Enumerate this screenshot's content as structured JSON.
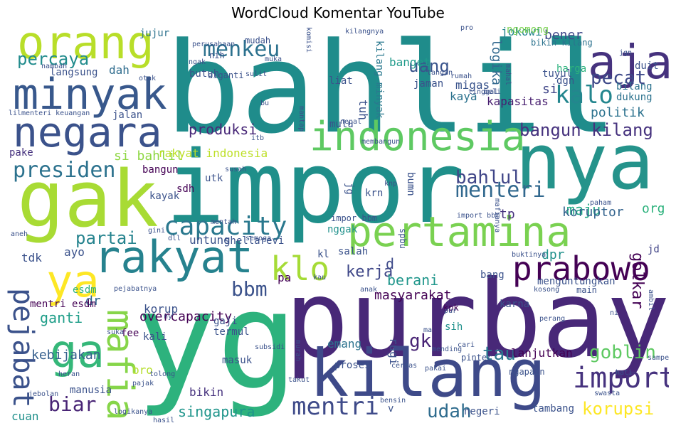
{
  "chart_data": {
    "type": "wordcloud",
    "title": "WordCloud Komentar YouTube",
    "words": [
      {
        "text": "bahlil",
        "color": "#1f8c8b"
      },
      {
        "text": "impor",
        "color": "#1f8f8a"
      },
      {
        "text": "yg",
        "color": "#2db27d"
      },
      {
        "text": "purbaya",
        "color": "#482878"
      },
      {
        "text": "gak",
        "color": "#a8db34"
      },
      {
        "text": "nya",
        "color": "#25938b"
      },
      {
        "text": "kilang",
        "color": "#3e4a89"
      },
      {
        "text": "orang",
        "color": "#b8de29"
      },
      {
        "text": "minyak",
        "color": "#38588c"
      },
      {
        "text": "negara",
        "color": "#3b528b"
      },
      {
        "text": "pertamina",
        "color": "#7ad151"
      },
      {
        "text": "rakyat",
        "color": "#26828e"
      },
      {
        "text": "indonesia",
        "color": "#5ec962"
      },
      {
        "text": "aja",
        "color": "#46327e"
      },
      {
        "text": "ya",
        "color": "#fde725"
      },
      {
        "text": "ga",
        "color": "#35b779"
      },
      {
        "text": "mafia",
        "color": "#86d549"
      },
      {
        "text": "prabowo",
        "color": "#440154"
      },
      {
        "text": "capacity",
        "color": "#2a788e"
      },
      {
        "text": "presiden",
        "color": "#2c728e"
      },
      {
        "text": "pejabat",
        "color": "#3b528b"
      },
      {
        "text": "klo",
        "color": "#a5db36"
      },
      {
        "text": "menkeu",
        "color": "#2c718e"
      },
      {
        "text": "import",
        "color": "#46327e"
      },
      {
        "text": "kalo",
        "color": "#24868e"
      },
      {
        "text": "mentri",
        "color": "#3e4a89"
      },
      {
        "text": "percaya",
        "color": "#228c8d"
      },
      {
        "text": "bbm",
        "color": "#3b528b"
      },
      {
        "text": "menteri",
        "color": "#31688e"
      },
      {
        "text": "pecat",
        "color": "#3e4989"
      },
      {
        "text": "uang",
        "color": "#3a548c"
      },
      {
        "text": "bahlul",
        "color": "#404688"
      },
      {
        "text": "bangun kilang",
        "color": "#46327e"
      },
      {
        "text": "partai",
        "color": "#25838e"
      },
      {
        "text": "biar",
        "color": "#482475"
      },
      {
        "text": "goblin",
        "color": "#5ec962"
      },
      {
        "text": "korupsi",
        "color": "#fde725"
      },
      {
        "text": "golkar",
        "color": "#440154"
      },
      {
        "text": "udah",
        "color": "#2f6c8e"
      },
      {
        "text": "tau",
        "color": "#2a788e"
      },
      {
        "text": "gk",
        "color": "#482475"
      },
      {
        "text": "kerja",
        "color": "#3f4788"
      },
      {
        "text": "berani",
        "color": "#1f968b"
      },
      {
        "text": "ganti",
        "color": "#1f9e89"
      },
      {
        "text": "masyarakat",
        "color": "#440154"
      },
      {
        "text": "singapura",
        "color": "#1f958b"
      },
      {
        "text": "kebijakan",
        "color": "#355f8d"
      },
      {
        "text": "produksi",
        "color": "#482878"
      },
      {
        "text": "maju",
        "color": "#22a884"
      },
      {
        "text": "logika",
        "color": "#31688e"
      },
      {
        "text": "koruptor",
        "color": "#33638d"
      },
      {
        "text": "politik",
        "color": "#2c728e"
      },
      {
        "text": "kapasitas",
        "color": "#481f70"
      },
      {
        "text": "jokowi",
        "color": "#24868e"
      },
      {
        "text": "bener",
        "color": "#3f4788"
      },
      {
        "text": "si bahlil",
        "color": "#8fd744"
      },
      {
        "text": "rakyat indonesia",
        "color": "#bddf26"
      },
      {
        "text": "overcapacity",
        "color": "#440154"
      },
      {
        "text": "esdm",
        "color": "#2db27d"
      },
      {
        "text": "korup",
        "color": "#3b528b"
      },
      {
        "text": "dah",
        "color": "#2f6c8e"
      },
      {
        "text": "dpr",
        "color": "#21918c"
      },
      {
        "text": "org",
        "color": "#2db27d"
      },
      {
        "text": "d",
        "color": "#3e4a89"
      },
      {
        "text": "si",
        "color": "#404688"
      },
      {
        "text": "tp",
        "color": "#46327e"
      },
      {
        "text": "jd",
        "color": "#414487"
      },
      {
        "text": "dr",
        "color": "#31688e"
      },
      {
        "text": "banget",
        "color": "#1f9a8a"
      },
      {
        "text": "tuh",
        "color": "#3b528b"
      },
      {
        "text": "kilang minyak",
        "color": "#2a788e"
      },
      {
        "text": "kaya",
        "color": "#2c728e"
      },
      {
        "text": "migas",
        "color": "#3a548c"
      },
      {
        "text": "harga",
        "color": "#2db27d"
      },
      {
        "text": "bilang",
        "color": "#2c728e"
      },
      {
        "text": "dukung",
        "color": "#2c728e"
      },
      {
        "text": "tuyul",
        "color": "#3b528b"
      },
      {
        "text": "dgn",
        "color": "#3b528b"
      },
      {
        "text": "duit",
        "color": "#3b528b"
      },
      {
        "text": "bikin kilang",
        "color": "#2c728e"
      },
      {
        "text": "bangun",
        "color": "#440154"
      },
      {
        "text": "jujur",
        "color": "#2c728e"
      },
      {
        "text": "butuh",
        "color": "#3b528b"
      },
      {
        "text": "langsung",
        "color": "#3b528b"
      },
      {
        "text": "jalan",
        "color": "#3b528b"
      },
      {
        "text": "pake",
        "color": "#46327e"
      },
      {
        "text": "kayak",
        "color": "#3b528b"
      },
      {
        "text": "sdh",
        "color": "#440154"
      },
      {
        "text": "utk",
        "color": "#3b528b"
      },
      {
        "text": "nggak",
        "color": "#21918c"
      },
      {
        "text": "untung",
        "color": "#3b528b"
      },
      {
        "text": "shellarevi",
        "color": "#3b528b"
      },
      {
        "text": "ayo",
        "color": "#3b528b"
      },
      {
        "text": "tdk",
        "color": "#3b528b"
      },
      {
        "text": "salah",
        "color": "#3b528b"
      },
      {
        "text": "bang",
        "color": "#3b528b"
      },
      {
        "text": "menguntungkan",
        "color": "#3b528b"
      },
      {
        "text": "main",
        "color": "#3b528b"
      },
      {
        "text": "kpk",
        "color": "#440154"
      },
      {
        "text": "karna",
        "color": "#3b528b"
      },
      {
        "text": "sih",
        "color": "#21918c"
      },
      {
        "text": "emang",
        "color": "#2c728e"
      },
      {
        "text": "rugi",
        "color": "#3b528b"
      },
      {
        "text": "lanjutkan",
        "color": "#440154"
      },
      {
        "text": "fee",
        "color": "#440154"
      },
      {
        "text": "gaji",
        "color": "#3b528b"
      },
      {
        "text": "termul",
        "color": "#3b528b"
      },
      {
        "text": "kali",
        "color": "#3b528b"
      },
      {
        "text": "bro",
        "color": "#b5de2b"
      },
      {
        "text": "masuk",
        "color": "#3b528b"
      },
      {
        "text": "bikin",
        "color": "#46327e"
      },
      {
        "text": "manusia",
        "color": "#3b528b"
      },
      {
        "text": "cuan",
        "color": "#21918c"
      },
      {
        "text": "negeri",
        "color": "#3b528b"
      },
      {
        "text": "mentri esdm",
        "color": "#440154"
      },
      {
        "text": "impor bbm",
        "color": "#3b528b"
      },
      {
        "text": "spbu",
        "color": "#3b528b"
      },
      {
        "text": "krn",
        "color": "#3b528b"
      },
      {
        "text": "jg",
        "color": "#3b528b"
      },
      {
        "text": "bumn",
        "color": "#3b528b"
      },
      {
        "text": "kl",
        "color": "#3b528b"
      },
      {
        "text": "pa",
        "color": "#440154"
      },
      {
        "text": "v",
        "color": "#3b528b"
      },
      {
        "text": "liat",
        "color": "#3b528b"
      },
      {
        "text": "jaman",
        "color": "#3b528b"
      },
      {
        "text": "mulu",
        "color": "#3b528b"
      },
      {
        "text": "pinter",
        "color": "#3b528b"
      },
      {
        "text": "ngapain",
        "color": "#3b528b"
      },
      {
        "text": "proses",
        "color": "#3b528b"
      },
      {
        "text": "tambang",
        "color": "#3b528b"
      },
      {
        "text": "ngomong",
        "color": "#7ad151"
      },
      {
        "text": "nih",
        "color": "#3b528b"
      },
      {
        "text": "mudah",
        "color": "#3b528b"
      },
      {
        "text": "komisi",
        "color": "#3b528b"
      },
      {
        "text": "kilangnya",
        "color": "#3b528b"
      },
      {
        "text": "pro",
        "color": "#3b528b"
      },
      {
        "text": "jgn",
        "color": "#3b528b"
      },
      {
        "text": "perusahaan",
        "color": "#3b528b"
      },
      {
        "text": "ngak",
        "color": "#3b528b"
      },
      {
        "text": "sulit",
        "color": "#3b528b"
      },
      {
        "text": "muka",
        "color": "#3b528b"
      },
      {
        "text": "otak",
        "color": "#3b528b"
      },
      {
        "text": "nambah",
        "color": "#3b528b"
      },
      {
        "text": "diganti",
        "color": "#3b528b"
      },
      {
        "text": "tangan",
        "color": "#3b528b"
      },
      {
        "text": "mahal",
        "color": "#3b528b"
      },
      {
        "text": "rumah",
        "color": "#3b528b"
      },
      {
        "text": "beli",
        "color": "#3b528b"
      },
      {
        "text": "tinggal",
        "color": "#3b528b"
      },
      {
        "text": "lil",
        "color": "#3b528b"
      },
      {
        "text": "menteri keuangan",
        "color": "#3b528b"
      },
      {
        "text": "bu",
        "color": "#3b528b"
      },
      {
        "text": "mantap",
        "color": "#3b528b"
      },
      {
        "text": "nepal",
        "color": "#3b528b"
      },
      {
        "text": "itb",
        "color": "#3b528b"
      },
      {
        "text": "membangun",
        "color": "#3b528b"
      },
      {
        "text": "susah",
        "color": "#3b528b"
      },
      {
        "text": "knp",
        "color": "#3b528b"
      },
      {
        "text": "paham",
        "color": "#3b528b"
      },
      {
        "text": "import bbm",
        "color": "#3b528b"
      },
      {
        "text": "mafianya",
        "color": "#3b528b"
      },
      {
        "text": "mentah",
        "color": "#3b528b"
      },
      {
        "text": "gini",
        "color": "#3b528b"
      },
      {
        "text": "semoga",
        "color": "#3b528b"
      },
      {
        "text": "dll",
        "color": "#3b528b"
      },
      {
        "text": "kau",
        "color": "#3b528b"
      },
      {
        "text": "buktinya",
        "color": "#3b528b"
      },
      {
        "text": "anak",
        "color": "#3b528b"
      },
      {
        "text": "kosong",
        "color": "#3b528b"
      },
      {
        "text": "pejabatnya",
        "color": "#3b528b"
      },
      {
        "text": "ny",
        "color": "#3b528b"
      },
      {
        "text": "suka",
        "color": "#3b528b"
      },
      {
        "text": "ma",
        "color": "#3b528b"
      },
      {
        "text": "pur",
        "color": "#3b528b"
      },
      {
        "text": "mending",
        "color": "#3b528b"
      },
      {
        "text": "cari",
        "color": "#3b528b"
      },
      {
        "text": "perang",
        "color": "#3b528b"
      },
      {
        "text": "hati",
        "color": "#3b528b"
      },
      {
        "text": "subsidi",
        "color": "#3b528b"
      },
      {
        "text": "murah",
        "color": "#3b528b"
      },
      {
        "text": "heran",
        "color": "#3b528b"
      },
      {
        "text": "pajak",
        "color": "#3b528b"
      },
      {
        "text": "tolong",
        "color": "#3b528b"
      },
      {
        "text": "hasil",
        "color": "#3b528b"
      },
      {
        "text": "jebolan",
        "color": "#3b528b"
      },
      {
        "text": "takut",
        "color": "#3b528b"
      },
      {
        "text": "pakai",
        "color": "#3b528b"
      },
      {
        "text": "cerdas",
        "color": "#3b528b"
      },
      {
        "text": "swasta",
        "color": "#3b528b"
      },
      {
        "text": "sampe",
        "color": "#3b528b"
      },
      {
        "text": "bensin",
        "color": "#3b528b"
      },
      {
        "text": "logikanya",
        "color": "#3b528b"
      },
      {
        "text": "aneh",
        "color": "#3b528b"
      },
      {
        "text": "ambil",
        "color": "#3b528b"
      },
      {
        "text": "ni",
        "color": "#3b528b"
      }
    ]
  }
}
